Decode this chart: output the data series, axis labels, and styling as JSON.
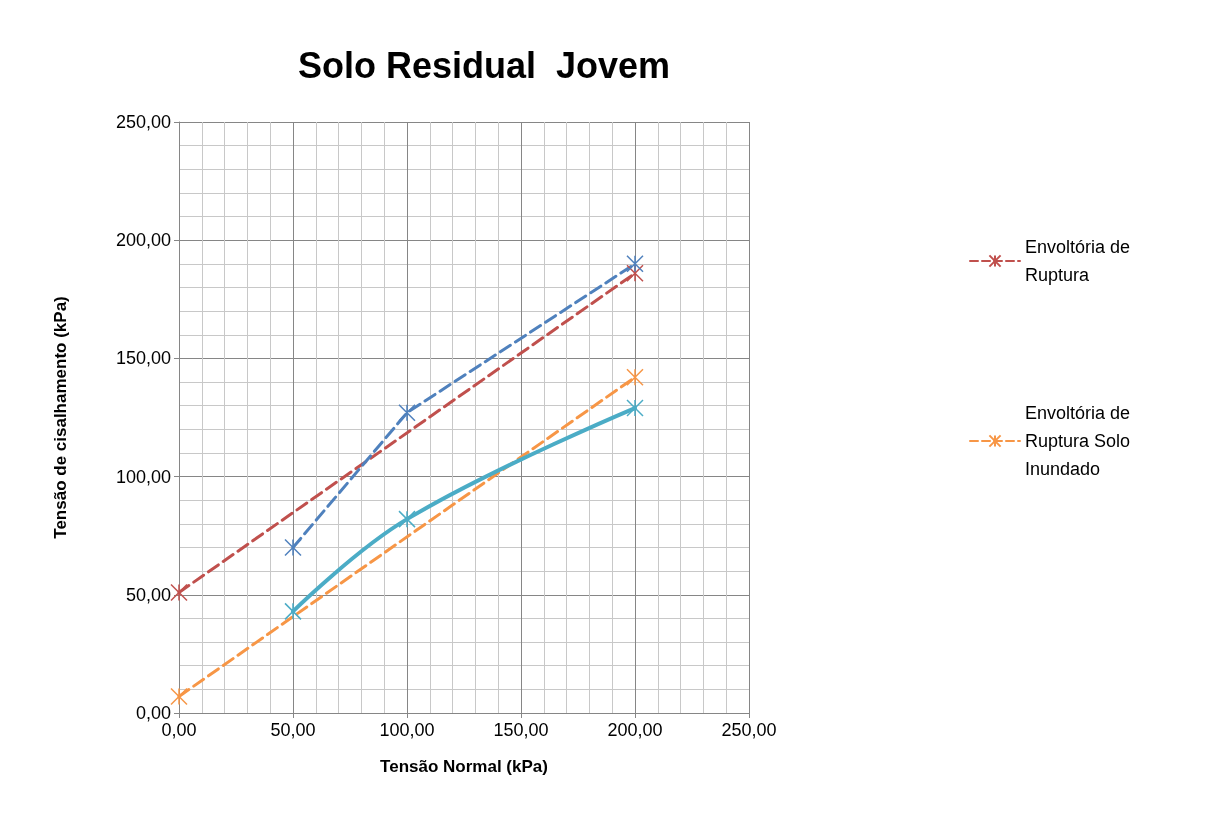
{
  "chart_data": {
    "type": "line",
    "title": "Solo Residual  Jovem",
    "xlabel": "Tensão Normal (kPa)",
    "ylabel": "Tensão de cisalhamento (kPa)",
    "xlim": [
      0,
      250
    ],
    "ylim": [
      0,
      250
    ],
    "xticks": [
      {
        "value": 0,
        "label": "0,00"
      },
      {
        "value": 50,
        "label": "50,00"
      },
      {
        "value": 100,
        "label": "100,00"
      },
      {
        "value": 150,
        "label": "150,00"
      },
      {
        "value": 200,
        "label": "200,00"
      },
      {
        "value": 250,
        "label": "250,00"
      }
    ],
    "yticks": [
      {
        "value": 0,
        "label": "0,00"
      },
      {
        "value": 50,
        "label": "50,00"
      },
      {
        "value": 100,
        "label": "100,00"
      },
      {
        "value": 150,
        "label": "150,00"
      },
      {
        "value": 200,
        "label": "200,00"
      },
      {
        "value": 250,
        "label": "250,00"
      }
    ],
    "grid": true,
    "legend": "right",
    "marker": "cross",
    "series": [
      {
        "name": "Envoltória de Ruptura",
        "color": "#c0504d",
        "x": [
          0,
          200
        ],
        "values": [
          51,
          186
        ],
        "line_style": "dashed"
      },
      {
        "color": "#4f81bd",
        "x": [
          50,
          100,
          200
        ],
        "values": [
          70,
          127,
          190
        ],
        "line_style": "dashed"
      },
      {
        "name": "Envoltória de Ruptura Solo Inundado",
        "color": "#f79646",
        "x": [
          0,
          200
        ],
        "values": [
          7,
          142
        ],
        "line_style": "dashed"
      },
      {
        "color": "#4bacc6",
        "x": [
          50,
          100,
          200
        ],
        "values": [
          43,
          82,
          129
        ],
        "line_style": "solid"
      }
    ]
  }
}
